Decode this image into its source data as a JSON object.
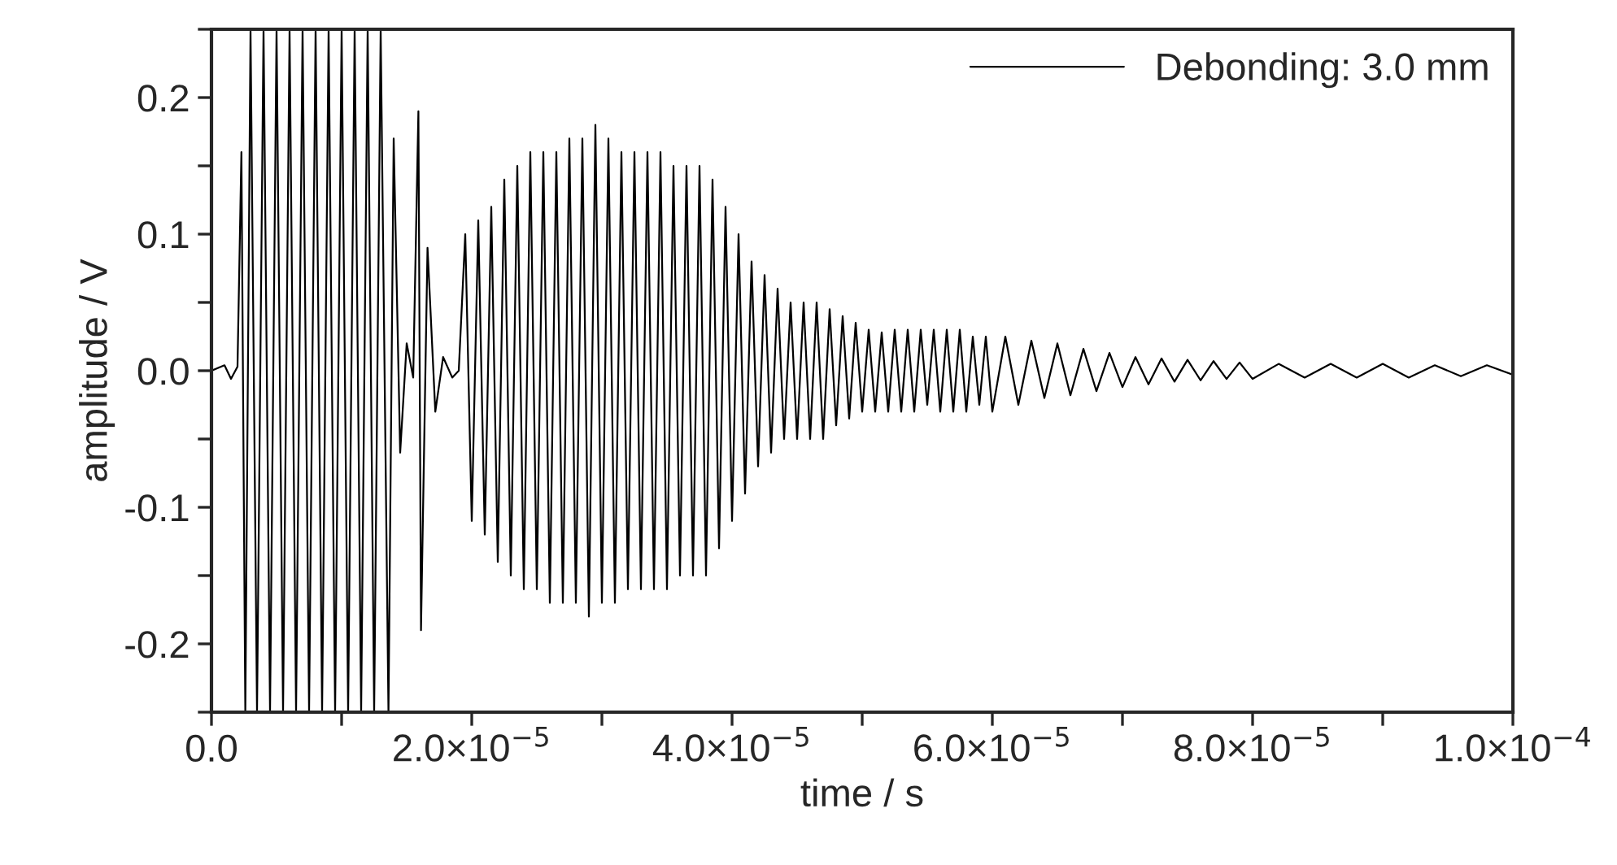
{
  "chart_data": {
    "type": "line",
    "xlabel": "time / s",
    "ylabel": "amplitude / V",
    "xlim": [
      0,
      0.0001
    ],
    "ylim": [
      -0.25,
      0.25
    ],
    "xticks": [
      {
        "value": 0,
        "label": "0.0"
      },
      {
        "value": 1e-05,
        "label": null
      },
      {
        "value": 2e-05,
        "label": "2.0×10$^{−5}$"
      },
      {
        "value": 3e-05,
        "label": null
      },
      {
        "value": 4e-05,
        "label": "4.0×10$^{−5}$"
      },
      {
        "value": 5e-05,
        "label": null
      },
      {
        "value": 6e-05,
        "label": "6.0×10$^{−5}$"
      },
      {
        "value": 7e-05,
        "label": null
      },
      {
        "value": 8e-05,
        "label": "8.0×10$^{−5}$"
      },
      {
        "value": 9e-05,
        "label": null
      },
      {
        "value": 0.0001,
        "label": "1.0×10$^{−4}$"
      }
    ],
    "yticks": [
      {
        "value": -0.25,
        "label": null
      },
      {
        "value": -0.2,
        "label": "-0.2"
      },
      {
        "value": -0.15,
        "label": null
      },
      {
        "value": -0.1,
        "label": "-0.1"
      },
      {
        "value": -0.05,
        "label": null
      },
      {
        "value": 0,
        "label": "0.0"
      },
      {
        "value": 0.05,
        "label": null
      },
      {
        "value": 0.1,
        "label": "0.1"
      },
      {
        "value": 0.15,
        "label": null
      },
      {
        "value": 0.2,
        "label": "0.2"
      },
      {
        "value": 0.25,
        "label": null
      }
    ],
    "grid": false,
    "legend": "top right",
    "marker": "none",
    "line_style": "solid",
    "series": [
      {
        "name": "Debonding: 3.0 mm",
        "color": "#000000",
        "x": [
          0,
          1e-06,
          1.5e-06,
          2e-06,
          2.3e-06,
          2.6e-06,
          3e-06,
          3.5e-06,
          4e-06,
          4.5e-06,
          5e-06,
          5.5e-06,
          6e-06,
          6.5e-06,
          7e-06,
          7.5e-06,
          8e-06,
          8.5e-06,
          9e-06,
          9.5e-06,
          1e-05,
          1.05e-05,
          1.1e-05,
          1.15e-05,
          1.2e-05,
          1.25e-05,
          1.3e-05,
          1.36e-05,
          1.4e-05,
          1.45e-05,
          1.5e-05,
          1.55e-05,
          1.59e-05,
          1.61e-05,
          1.66e-05,
          1.72e-05,
          1.78e-05,
          1.85e-05,
          1.9e-05,
          1.95e-05,
          2e-05,
          2.05e-05,
          2.1e-05,
          2.15e-05,
          2.2e-05,
          2.25e-05,
          2.3e-05,
          2.35e-05,
          2.4e-05,
          2.45e-05,
          2.5e-05,
          2.55e-05,
          2.6e-05,
          2.65e-05,
          2.7e-05,
          2.75e-05,
          2.8e-05,
          2.85e-05,
          2.9e-05,
          2.95e-05,
          3e-05,
          3.05e-05,
          3.1e-05,
          3.15e-05,
          3.2e-05,
          3.25e-05,
          3.3e-05,
          3.35e-05,
          3.4e-05,
          3.45e-05,
          3.5e-05,
          3.55e-05,
          3.6e-05,
          3.65e-05,
          3.7e-05,
          3.75e-05,
          3.8e-05,
          3.85e-05,
          3.9e-05,
          3.95e-05,
          4e-05,
          4.05e-05,
          4.1e-05,
          4.15e-05,
          4.2e-05,
          4.25e-05,
          4.3e-05,
          4.35e-05,
          4.4e-05,
          4.45e-05,
          4.5e-05,
          4.55e-05,
          4.6e-05,
          4.65e-05,
          4.7e-05,
          4.75e-05,
          4.8e-05,
          4.85e-05,
          4.9e-05,
          4.95e-05,
          5e-05,
          5.05e-05,
          5.1e-05,
          5.15e-05,
          5.2e-05,
          5.25e-05,
          5.3e-05,
          5.35e-05,
          5.4e-05,
          5.45e-05,
          5.5e-05,
          5.55e-05,
          5.6e-05,
          5.65e-05,
          5.7e-05,
          5.75e-05,
          5.8e-05,
          5.85e-05,
          5.9e-05,
          5.95e-05,
          6e-05,
          6.1e-05,
          6.2e-05,
          6.3e-05,
          6.4e-05,
          6.5e-05,
          6.6e-05,
          6.7e-05,
          6.8e-05,
          6.9e-05,
          7e-05,
          7.1e-05,
          7.2e-05,
          7.3e-05,
          7.4e-05,
          7.5e-05,
          7.6e-05,
          7.7e-05,
          7.8e-05,
          7.9e-05,
          8e-05,
          8.2e-05,
          8.4e-05,
          8.6e-05,
          8.8e-05,
          9e-05,
          9.2e-05,
          9.4e-05,
          9.6e-05,
          9.8e-05,
          0.0001
        ],
        "values": [
          0,
          0.004,
          -0.006,
          0.003,
          0.16,
          -0.25,
          0.25,
          -0.25,
          0.25,
          -0.25,
          0.25,
          -0.25,
          0.25,
          -0.25,
          0.25,
          -0.25,
          0.25,
          -0.25,
          0.25,
          -0.25,
          0.25,
          -0.25,
          0.25,
          -0.25,
          0.25,
          -0.25,
          0.25,
          -0.25,
          0.17,
          -0.06,
          0.02,
          -0.005,
          0.19,
          -0.19,
          0.09,
          -0.03,
          0.01,
          -0.005,
          0,
          0.1,
          -0.11,
          0.11,
          -0.12,
          0.12,
          -0.14,
          0.14,
          -0.15,
          0.15,
          -0.16,
          0.16,
          -0.16,
          0.16,
          -0.17,
          0.16,
          -0.17,
          0.17,
          -0.17,
          0.17,
          -0.18,
          0.18,
          -0.17,
          0.17,
          -0.17,
          0.16,
          -0.16,
          0.16,
          -0.16,
          0.16,
          -0.16,
          0.16,
          -0.16,
          0.15,
          -0.15,
          0.15,
          -0.15,
          0.15,
          -0.15,
          0.14,
          -0.13,
          0.12,
          -0.11,
          0.1,
          -0.09,
          0.08,
          -0.07,
          0.07,
          -0.06,
          0.06,
          -0.05,
          0.05,
          -0.05,
          0.05,
          -0.05,
          0.05,
          -0.05,
          0.045,
          -0.04,
          0.04,
          -0.035,
          0.035,
          -0.03,
          0.03,
          -0.03,
          0.028,
          -0.03,
          0.03,
          -0.03,
          0.03,
          -0.03,
          0.03,
          -0.025,
          0.03,
          -0.03,
          0.03,
          -0.03,
          0.03,
          -0.03,
          0.025,
          -0.025,
          0.025,
          -0.03,
          0.025,
          -0.025,
          0.022,
          -0.02,
          0.02,
          -0.018,
          0.016,
          -0.015,
          0.013,
          -0.012,
          0.01,
          -0.01,
          0.009,
          -0.008,
          0.008,
          -0.007,
          0.007,
          -0.006,
          0.006,
          -0.006,
          0.005,
          -0.005,
          0.005,
          -0.005,
          0.005,
          -0.005,
          0.004,
          -0.004,
          0.004,
          -0.003
        ]
      }
    ]
  }
}
